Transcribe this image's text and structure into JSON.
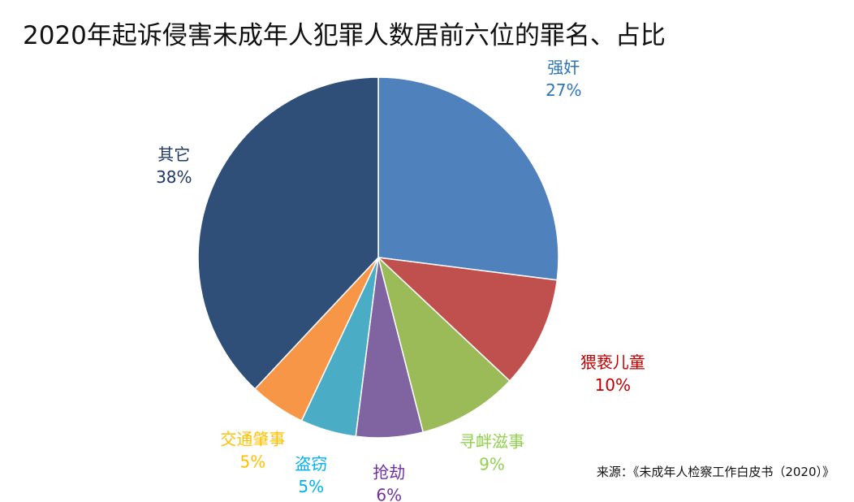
{
  "chart_data": {
    "type": "pie",
    "title": "2020年起诉侵害未成年人犯罪人数居前六位的罪名、占比",
    "slices": [
      {
        "label": "强奸",
        "value": 27,
        "display": "27%",
        "color": "#4f81bd",
        "label_color": "#2e75b6"
      },
      {
        "label": "猥亵儿童",
        "value": 10,
        "display": "10%",
        "color": "#c0504d",
        "label_color": "#c00000"
      },
      {
        "label": "寻衅滋事",
        "value": 9,
        "display": "9%",
        "color": "#9bbb59",
        "label_color": "#92d050"
      },
      {
        "label": "抢劫",
        "value": 6,
        "display": "6%",
        "color": "#8064a2",
        "label_color": "#7030a0"
      },
      {
        "label": "盗窃",
        "value": 5,
        "display": "5%",
        "color": "#4bacc6",
        "label_color": "#00b0f0"
      },
      {
        "label": "交通肇事",
        "value": 5,
        "display": "5%",
        "color": "#f79646",
        "label_color": "#ffc000"
      },
      {
        "label": "其它",
        "value": 38,
        "display": "38%",
        "color": "#2f4f79",
        "label_color": "#1f3864"
      }
    ],
    "source": "来源：《未成年人检察工作白皮书（2020）》"
  }
}
